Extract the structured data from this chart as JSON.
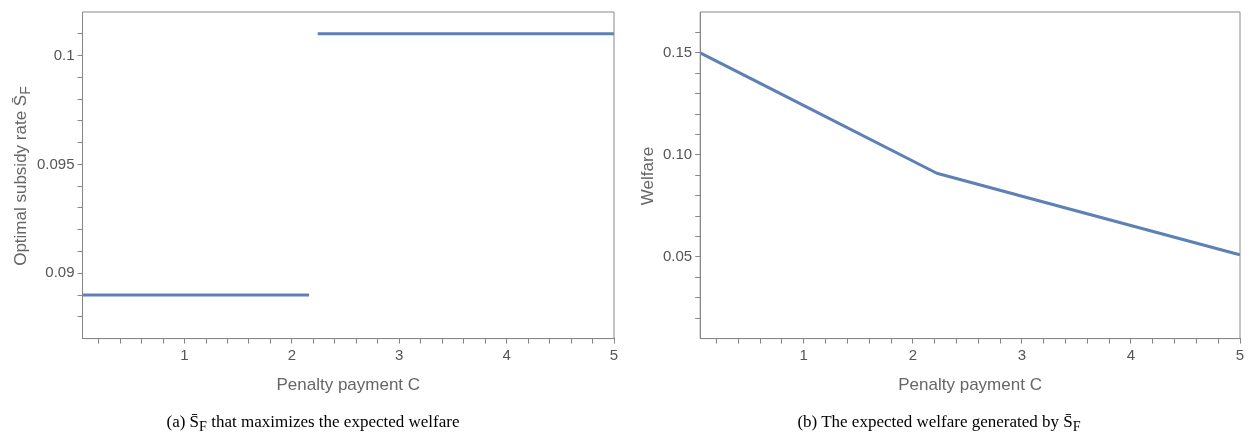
{
  "chart_data": [
    {
      "type": "line",
      "xlabel": "Penalty payment C",
      "ylabel": "Optimal subsidy rate S̄$_{F}$",
      "annotations": [
        "(a) S̄$_{F}$ that maximizes the expected welfare"
      ],
      "series": [
        {
          "color": "#5e81b5",
          "x": [
            0.05,
            2.16,
            2.2,
            2.24,
            5
          ],
          "values": [
            0.089,
            0.089,
            null,
            0.101,
            0.101
          ]
        }
      ],
      "xlim": [
        0.05,
        5
      ],
      "ylim": [
        0.087,
        0.102
      ],
      "xticks": [
        {
          "value": 0.2,
          "label": null
        },
        {
          "value": 0.4,
          "label": null
        },
        {
          "value": 0.6,
          "label": null
        },
        {
          "value": 0.8,
          "label": null
        },
        1,
        {
          "value": 1.2,
          "label": null
        },
        {
          "value": 1.4,
          "label": null
        },
        {
          "value": 1.6,
          "label": null
        },
        {
          "value": 1.8,
          "label": null
        },
        2,
        {
          "value": 2.2,
          "label": null
        },
        {
          "value": 2.4,
          "label": null
        },
        {
          "value": 2.6,
          "label": null
        },
        {
          "value": 2.8,
          "label": null
        },
        3,
        {
          "value": 3.2,
          "label": null
        },
        {
          "value": 3.4,
          "label": null
        },
        {
          "value": 3.6,
          "label": null
        },
        {
          "value": 3.8,
          "label": null
        },
        4,
        {
          "value": 4.2,
          "label": null
        },
        {
          "value": 4.4,
          "label": null
        },
        {
          "value": 4.6,
          "label": null
        },
        {
          "value": 4.8,
          "label": null
        },
        5
      ],
      "yticks": [
        {
          "value": 0.088,
          "label": null
        },
        {
          "value": 0.089,
          "label": null
        },
        0.09,
        {
          "value": 0.091,
          "label": null
        },
        {
          "value": 0.092,
          "label": null
        },
        {
          "value": 0.093,
          "label": null
        },
        {
          "value": 0.094,
          "label": null
        },
        0.095,
        {
          "value": 0.096,
          "label": null
        },
        {
          "value": 0.097,
          "label": null
        },
        {
          "value": 0.098,
          "label": null
        },
        {
          "value": 0.099,
          "label": null
        },
        0.1,
        {
          "value": 0.101,
          "label": null
        }
      ],
      "grid": false,
      "legend": false,
      "marker": "none",
      "line_style": "solid"
    },
    {
      "type": "line",
      "xlabel": "Penalty payment C",
      "ylabel": "Welfare",
      "annotations": [
        "(b) The expected welfare generated by S̄$_{F}$"
      ],
      "series": [
        {
          "color": "#5e81b5",
          "x": [
            0.05,
            2.22,
            5
          ],
          "values": [
            0.15,
            0.091,
            0.051
          ]
        }
      ],
      "xlim": [
        0.05,
        5
      ],
      "ylim": [
        0.01,
        0.17
      ],
      "xticks": [
        {
          "value": 0.2,
          "label": null
        },
        {
          "value": 0.4,
          "label": null
        },
        {
          "value": 0.6,
          "label": null
        },
        {
          "value": 0.8,
          "label": null
        },
        1,
        {
          "value": 1.2,
          "label": null
        },
        {
          "value": 1.4,
          "label": null
        },
        {
          "value": 1.6,
          "label": null
        },
        {
          "value": 1.8,
          "label": null
        },
        2,
        {
          "value": 2.2,
          "label": null
        },
        {
          "value": 2.4,
          "label": null
        },
        {
          "value": 2.6,
          "label": null
        },
        {
          "value": 2.8,
          "label": null
        },
        3,
        {
          "value": 3.2,
          "label": null
        },
        {
          "value": 3.4,
          "label": null
        },
        {
          "value": 3.6,
          "label": null
        },
        {
          "value": 3.8,
          "label": null
        },
        4,
        {
          "value": 4.2,
          "label": null
        },
        {
          "value": 4.4,
          "label": null
        },
        {
          "value": 4.6,
          "label": null
        },
        {
          "value": 4.8,
          "label": null
        },
        5
      ],
      "yticks": [
        {
          "value": 0.02,
          "label": null
        },
        {
          "value": 0.03,
          "label": null
        },
        {
          "value": 0.04,
          "label": null
        },
        0.05,
        {
          "value": 0.06,
          "label": null
        },
        {
          "value": 0.07,
          "label": null
        },
        {
          "value": 0.08,
          "label": null
        },
        {
          "value": 0.09,
          "label": null
        },
        {
          "value": 0.1,
          "label": "0.10"
        },
        {
          "value": 0.11,
          "label": null
        },
        {
          "value": 0.12,
          "label": null
        },
        {
          "value": 0.13,
          "label": null
        },
        {
          "value": 0.14,
          "label": null
        },
        0.15,
        {
          "value": 0.16,
          "label": null
        }
      ],
      "grid": false,
      "legend": false,
      "marker": "none",
      "line_style": "solid"
    }
  ]
}
